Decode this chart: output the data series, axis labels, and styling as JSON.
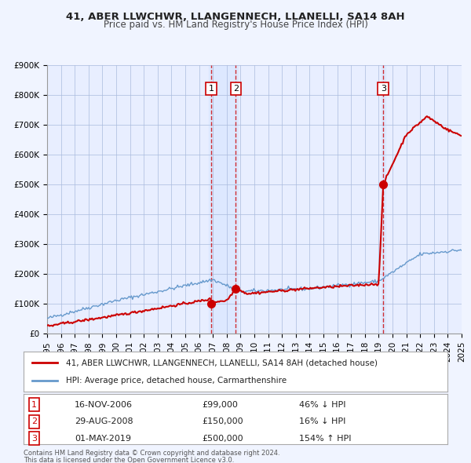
{
  "title": "41, ABER LLWCHWR, LLANGENNECH, LLANELLI, SA14 8AH",
  "subtitle": "Price paid vs. HM Land Registry's House Price Index (HPI)",
  "footer1": "Contains HM Land Registry data © Crown copyright and database right 2024.",
  "footer2": "This data is licensed under the Open Government Licence v3.0.",
  "legend_red": "41, ABER LLWCHWR, LLANGENNECH, LLANELLI, SA14 8AH (detached house)",
  "legend_blue": "HPI: Average price, detached house, Carmarthenshire",
  "transactions": [
    {
      "num": 1,
      "date": 2006.88,
      "price": 99000,
      "label": "1",
      "pct": "46%",
      "dir": "↓"
    },
    {
      "num": 2,
      "date": 2008.66,
      "price": 150000,
      "label": "2",
      "pct": "16%",
      "dir": "↓"
    },
    {
      "num": 3,
      "date": 2019.33,
      "price": 500000,
      "label": "3",
      "pct": "154%",
      "dir": "↑"
    }
  ],
  "table_rows": [
    {
      "num": "1",
      "date": "16-NOV-2006",
      "price": "£99,000",
      "pct": "46% ↓ HPI"
    },
    {
      "num": "2",
      "date": "29-AUG-2008",
      "price": "£150,000",
      "pct": "16% ↓ HPI"
    },
    {
      "num": "3",
      "date": "01-MAY-2019",
      "price": "£500,000",
      "pct": "154% ↑ HPI"
    }
  ],
  "background_color": "#f0f4ff",
  "plot_bg": "#e8eeff",
  "grid_color": "#aabbdd",
  "red_color": "#cc0000",
  "blue_color": "#6699cc",
  "highlight_color": "#dde8ff",
  "ylim": [
    0,
    900000
  ],
  "yticks": [
    0,
    100000,
    200000,
    300000,
    400000,
    500000,
    600000,
    700000,
    800000,
    900000
  ]
}
